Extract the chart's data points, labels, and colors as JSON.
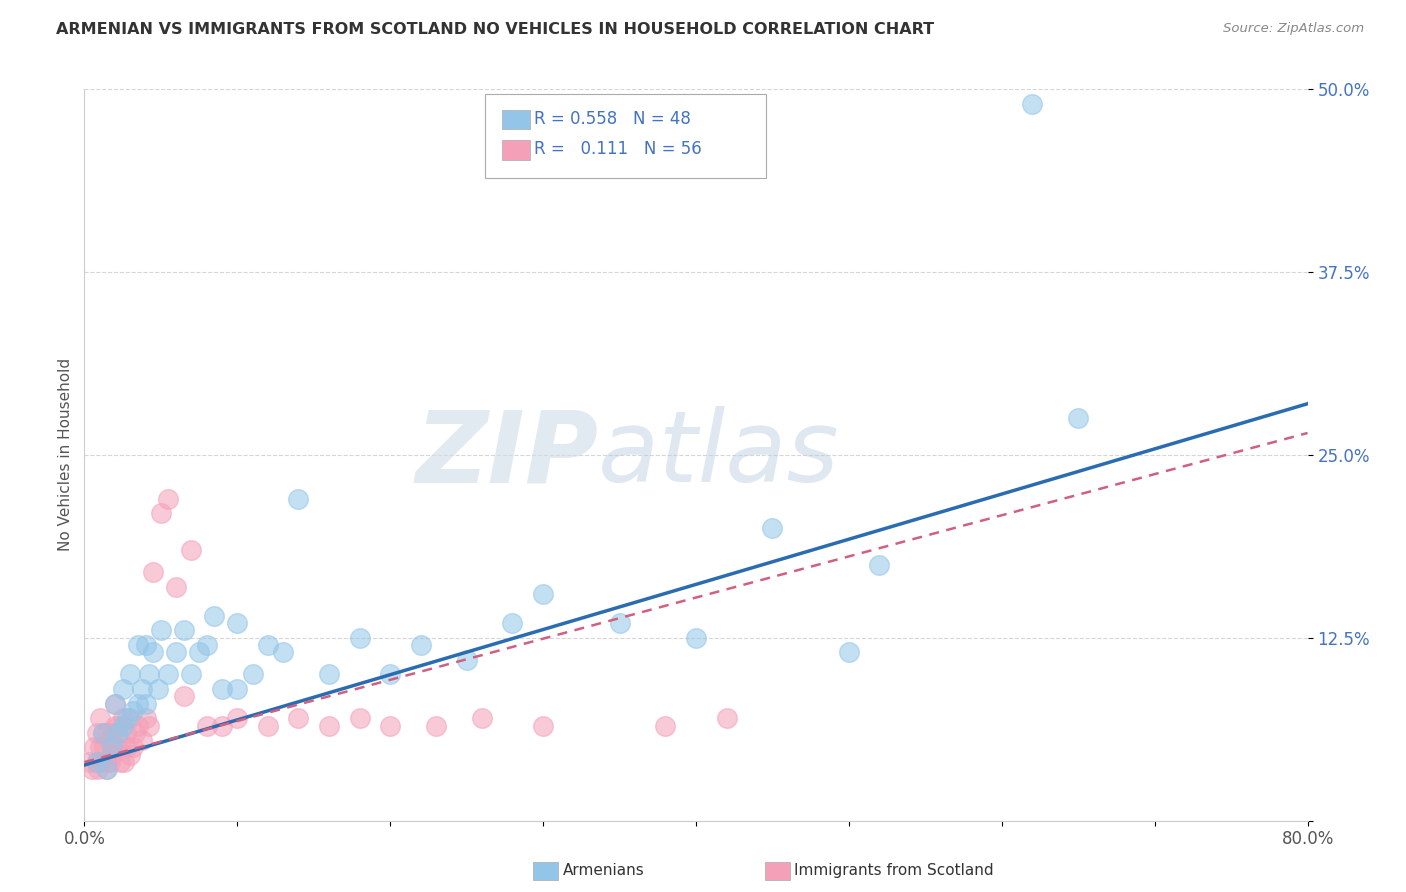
{
  "title": "ARMENIAN VS IMMIGRANTS FROM SCOTLAND NO VEHICLES IN HOUSEHOLD CORRELATION CHART",
  "source": "Source: ZipAtlas.com",
  "ylabel": "No Vehicles in Household",
  "xlim": [
    0.0,
    0.8
  ],
  "ylim": [
    0.0,
    0.5
  ],
  "ytick_positions": [
    0.0,
    0.125,
    0.25,
    0.375,
    0.5
  ],
  "yticklabels": [
    "",
    "12.5%",
    "25.0%",
    "37.5%",
    "50.0%"
  ],
  "grid_color": "#cccccc",
  "background_color": "#ffffff",
  "watermark_zip": "ZIP",
  "watermark_atlas": "atlas",
  "legend_armenians_R": "0.558",
  "legend_armenians_N": "48",
  "legend_scotland_R": "0.111",
  "legend_scotland_N": "56",
  "armenian_color": "#92C5E8",
  "scotland_color": "#F4A0B8",
  "trendline_armenian_color": "#2B6CB0",
  "trendline_scotland_color": "#D06080",
  "tick_label_color": "#4472C4",
  "trendline_arm_x0": 0.0,
  "trendline_arm_y0": 0.038,
  "trendline_arm_x1": 0.8,
  "trendline_arm_y1": 0.285,
  "trendline_sco_x0": 0.0,
  "trendline_sco_y0": 0.04,
  "trendline_sco_x1": 0.8,
  "trendline_sco_y1": 0.265,
  "armenian_x": [
    0.008,
    0.012,
    0.015,
    0.018,
    0.02,
    0.022,
    0.025,
    0.025,
    0.028,
    0.03,
    0.032,
    0.035,
    0.035,
    0.038,
    0.04,
    0.04,
    0.042,
    0.045,
    0.048,
    0.05,
    0.055,
    0.06,
    0.065,
    0.07,
    0.075,
    0.08,
    0.085,
    0.09,
    0.1,
    0.1,
    0.11,
    0.12,
    0.13,
    0.14,
    0.16,
    0.18,
    0.2,
    0.22,
    0.25,
    0.28,
    0.3,
    0.35,
    0.4,
    0.45,
    0.5,
    0.52,
    0.62,
    0.65
  ],
  "armenian_y": [
    0.04,
    0.06,
    0.035,
    0.05,
    0.08,
    0.06,
    0.09,
    0.065,
    0.07,
    0.1,
    0.075,
    0.12,
    0.08,
    0.09,
    0.12,
    0.08,
    0.1,
    0.115,
    0.09,
    0.13,
    0.1,
    0.115,
    0.13,
    0.1,
    0.115,
    0.12,
    0.14,
    0.09,
    0.135,
    0.09,
    0.1,
    0.12,
    0.115,
    0.22,
    0.1,
    0.125,
    0.1,
    0.12,
    0.11,
    0.135,
    0.155,
    0.135,
    0.125,
    0.2,
    0.115,
    0.175,
    0.49,
    0.275
  ],
  "scotland_x": [
    0.003,
    0.005,
    0.006,
    0.008,
    0.008,
    0.009,
    0.01,
    0.01,
    0.012,
    0.012,
    0.013,
    0.014,
    0.015,
    0.015,
    0.016,
    0.017,
    0.018,
    0.018,
    0.019,
    0.02,
    0.02,
    0.021,
    0.022,
    0.023,
    0.024,
    0.025,
    0.026,
    0.027,
    0.028,
    0.03,
    0.03,
    0.032,
    0.033,
    0.035,
    0.038,
    0.04,
    0.042,
    0.045,
    0.05,
    0.055,
    0.06,
    0.065,
    0.07,
    0.08,
    0.09,
    0.1,
    0.12,
    0.14,
    0.16,
    0.18,
    0.2,
    0.23,
    0.26,
    0.3,
    0.38,
    0.42
  ],
  "scotland_y": [
    0.04,
    0.035,
    0.05,
    0.04,
    0.06,
    0.035,
    0.05,
    0.07,
    0.04,
    0.06,
    0.05,
    0.035,
    0.06,
    0.04,
    0.055,
    0.04,
    0.06,
    0.045,
    0.05,
    0.065,
    0.08,
    0.05,
    0.065,
    0.04,
    0.055,
    0.07,
    0.04,
    0.06,
    0.05,
    0.07,
    0.045,
    0.05,
    0.06,
    0.065,
    0.055,
    0.07,
    0.065,
    0.17,
    0.21,
    0.22,
    0.16,
    0.085,
    0.185,
    0.065,
    0.065,
    0.07,
    0.065,
    0.07,
    0.065,
    0.07,
    0.065,
    0.065,
    0.07,
    0.065,
    0.065,
    0.07
  ]
}
